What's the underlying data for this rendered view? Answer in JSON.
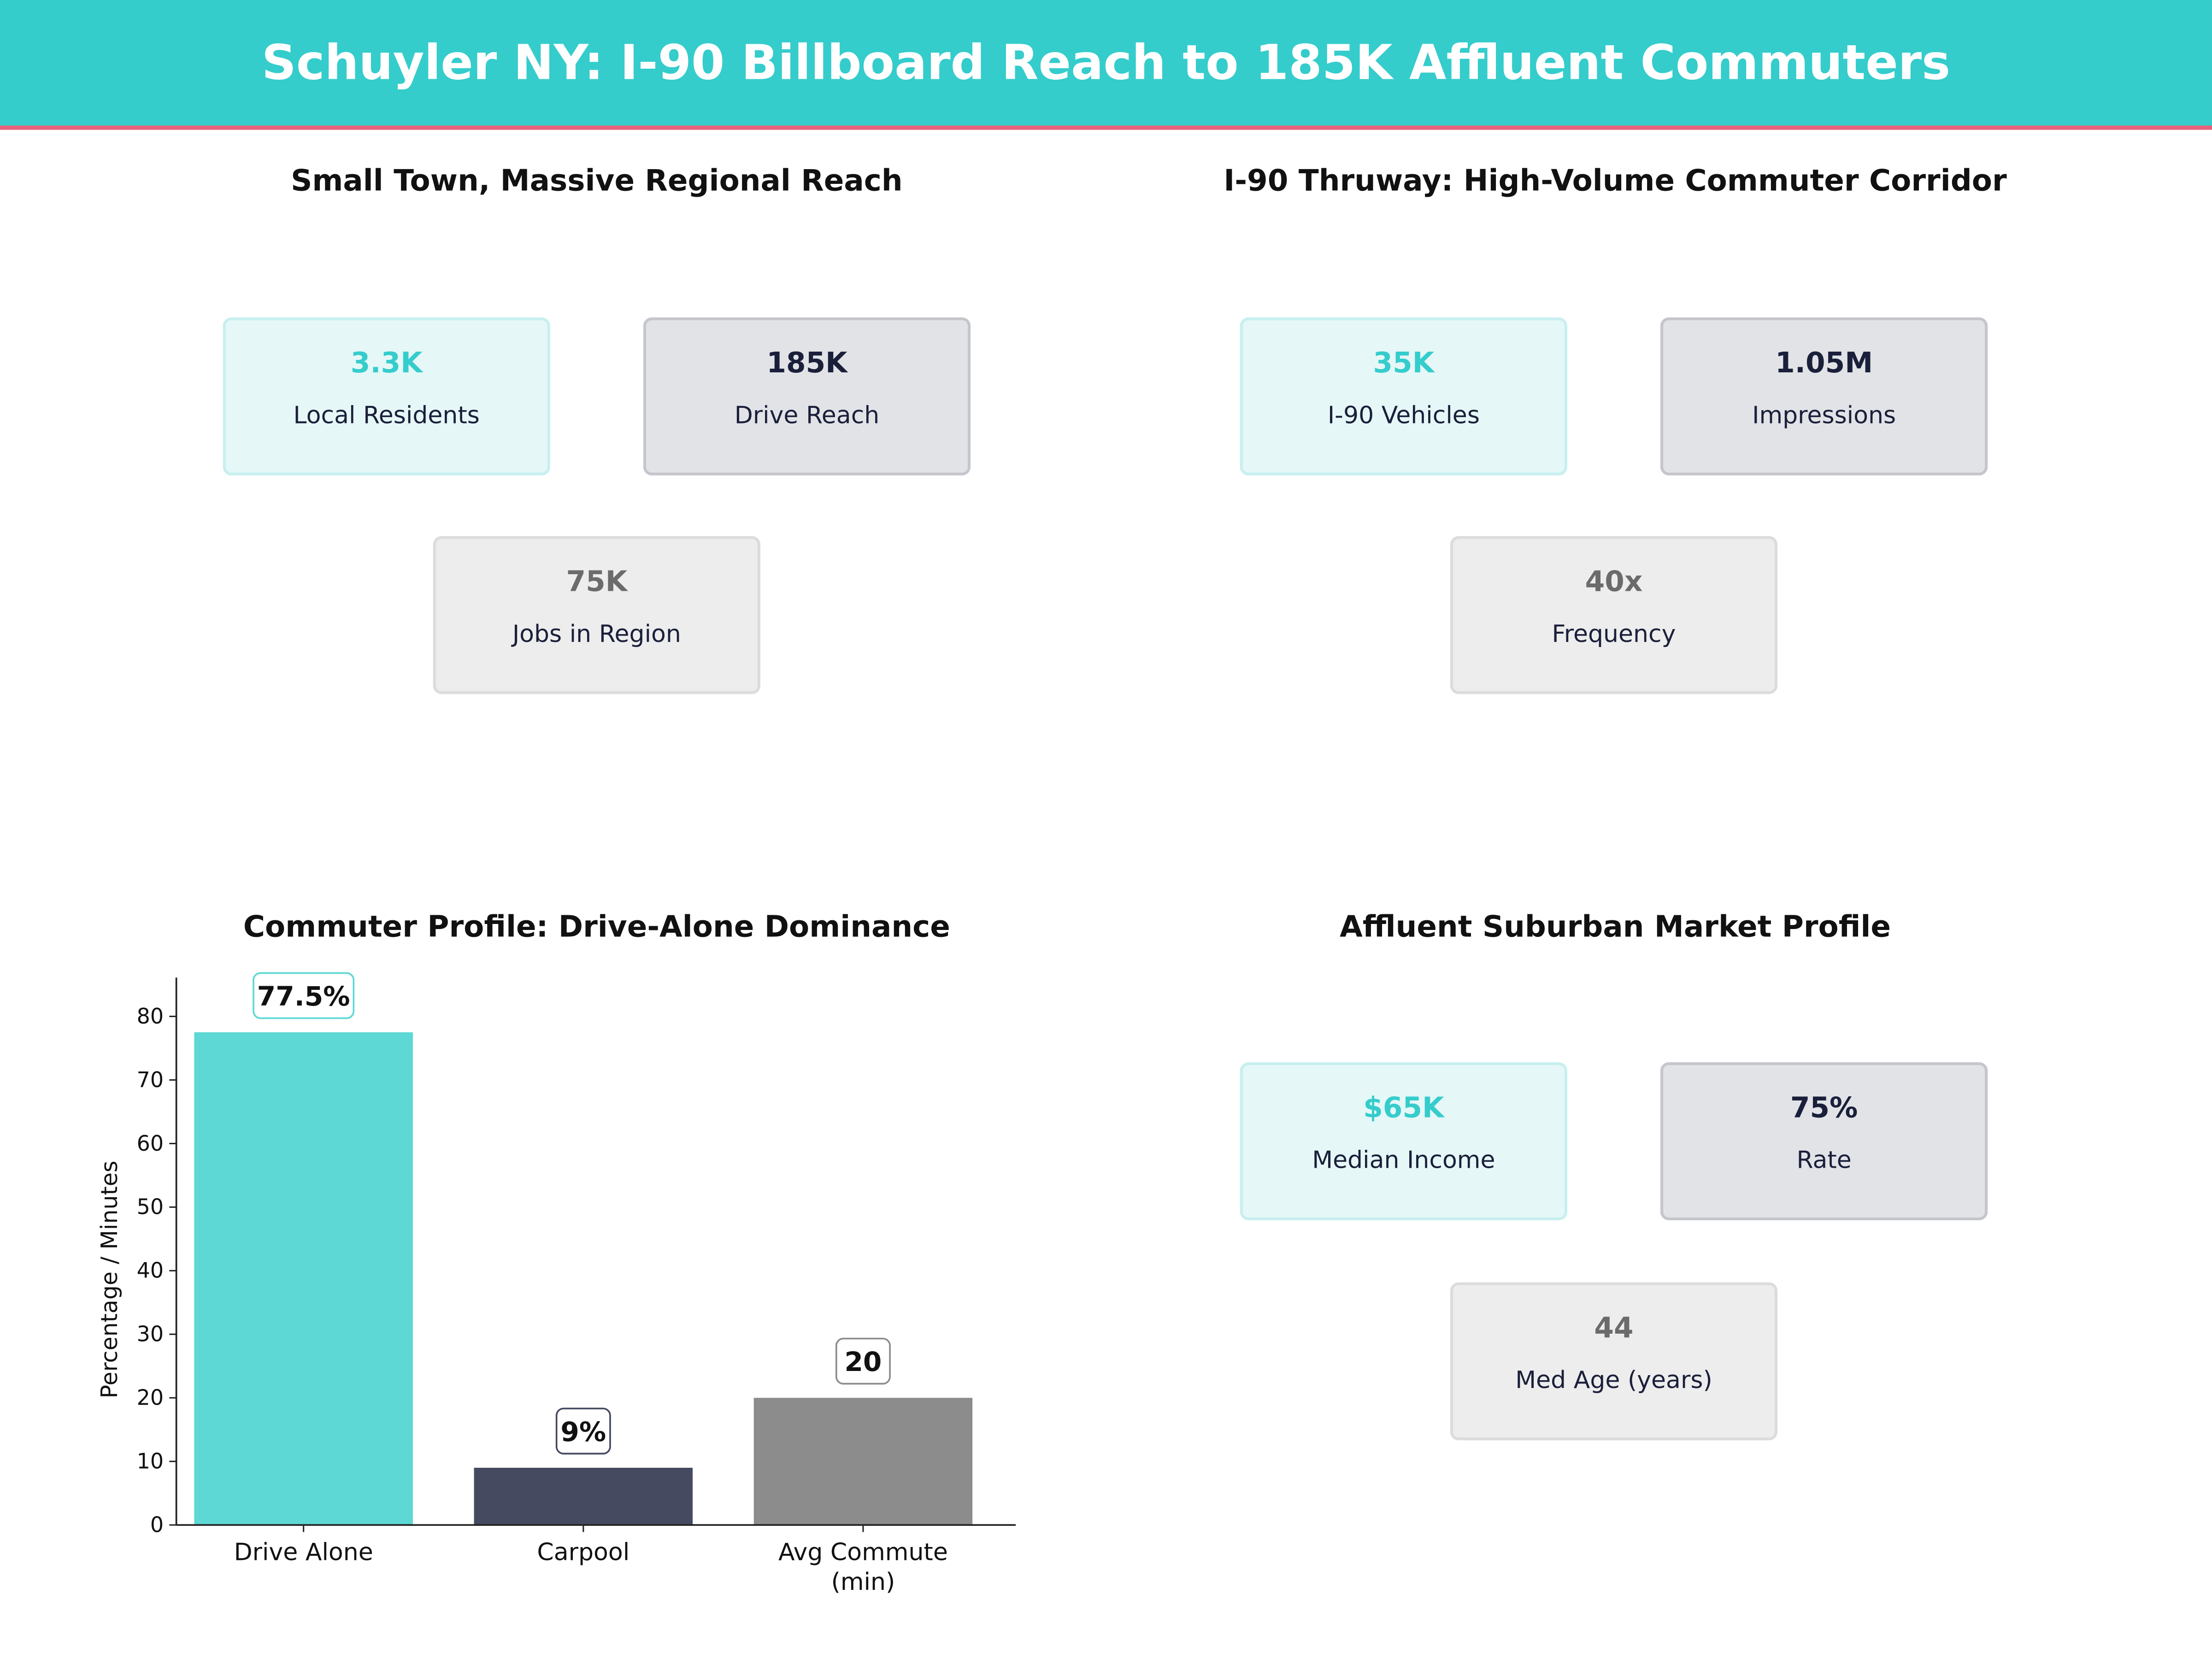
{
  "header": {
    "title": "Schuyler NY: I-90 Billboard Reach to 185K Affluent Commuters"
  },
  "colors": {
    "teal": "#35cccc",
    "accent_line": "#e8607a",
    "dark": "#464a60",
    "gray": "#8c8c8c",
    "bar_teal": "#5dd8d4"
  },
  "panels": [
    {
      "title": "Small Town, Massive Regional Reach",
      "cards": [
        {
          "value": "3.3K",
          "label": "Local Residents",
          "style": "teal"
        },
        {
          "value": "185K",
          "label": "Drive Reach",
          "style": "dark"
        },
        {
          "value": "75K",
          "label": "Jobs in Region",
          "style": "gray"
        }
      ]
    },
    {
      "title": "I-90 Thruway: High-Volume Commuter Corridor",
      "cards": [
        {
          "value": "35K",
          "label": "I-90 Vehicles",
          "style": "teal"
        },
        {
          "value": "1.05M",
          "label": "Impressions",
          "style": "dark"
        },
        {
          "value": "40x",
          "label": "Frequency",
          "style": "gray"
        }
      ]
    },
    {
      "title": "Affluent Suburban Market Profile",
      "cards": [
        {
          "value": "$65K",
          "label": "Median Income",
          "style": "teal"
        },
        {
          "value": "75%",
          "label": "Rate",
          "style": "dark"
        },
        {
          "value": "44",
          "label": "Med Age (years)",
          "style": "gray"
        }
      ]
    }
  ],
  "chart_data": {
    "type": "bar",
    "title": "Commuter Profile: Drive-Alone Dominance",
    "xlabel": "",
    "ylabel": "Percentage / Minutes",
    "categories": [
      "Drive Alone",
      "Carpool",
      "Avg Commute (min)"
    ],
    "category_lines": [
      [
        "Drive Alone"
      ],
      [
        "Carpool"
      ],
      [
        "Avg Commute",
        "(min)"
      ]
    ],
    "values": [
      77.5,
      9,
      20
    ],
    "data_labels": [
      "77.5%",
      "9%",
      "20"
    ],
    "bar_colors": [
      "#5dd8d4",
      "#464a60",
      "#8c8c8c"
    ],
    "yticks": [
      0,
      10,
      20,
      30,
      40,
      50,
      60,
      70,
      80
    ],
    "ylim": [
      0,
      86.1
    ],
    "grid": false
  }
}
